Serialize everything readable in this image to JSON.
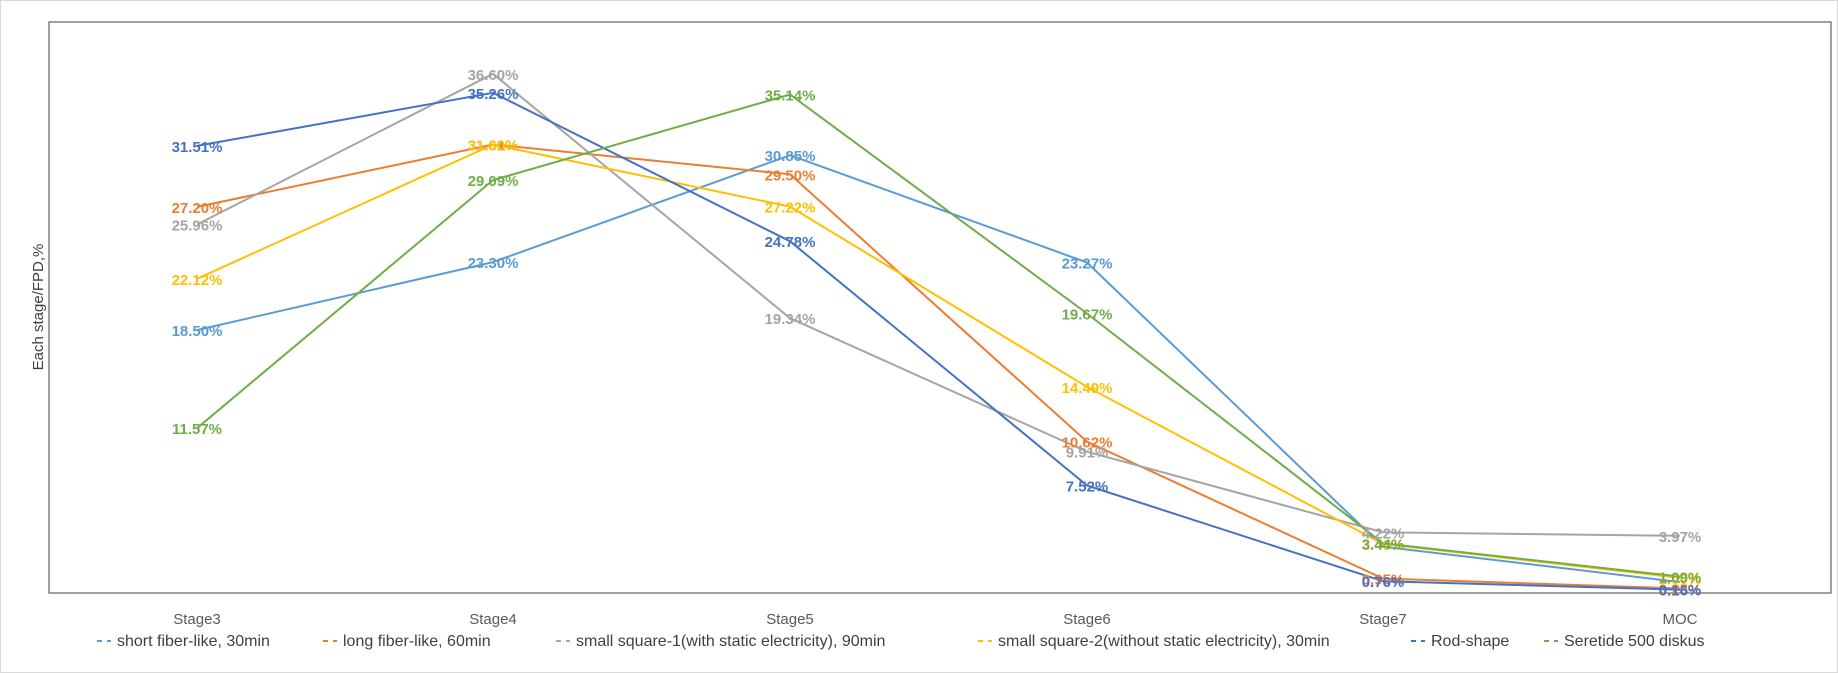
{
  "chart_data": {
    "type": "line",
    "title": "",
    "xlabel": "",
    "ylabel": "Each stage/FPD,%",
    "categories": [
      "Stage3",
      "Stage4",
      "Stage5",
      "Stage6",
      "Stage7",
      "MOC"
    ],
    "ylim": [
      0,
      38
    ],
    "grid": false,
    "legend_position": "bottom",
    "series": [
      {
        "name": "short fiber-like, 30min",
        "color": "#5B9BD5",
        "values": [
          18.5,
          23.3,
          30.85,
          23.27,
          3.2,
          0.7
        ],
        "labels": [
          "18.50%",
          "23.30%",
          "30.85%",
          "23.27%",
          "",
          ""
        ]
      },
      {
        "name": "long fiber-like, 60min",
        "color": "#ED7D31",
        "values": [
          27.2,
          31.61,
          29.5,
          10.62,
          0.95,
          0.25
        ],
        "labels": [
          "27.20%",
          "31.61%",
          "29.50%",
          "10.62%",
          "0.95%",
          "0.25%"
        ]
      },
      {
        "name": "small square-1(with static electricity), 90min",
        "color": "#A5A5A5",
        "values": [
          25.96,
          36.6,
          19.34,
          9.91,
          4.22,
          3.97
        ],
        "labels": [
          "25.96%",
          "36.60%",
          "19.34%",
          "9.91%",
          "4.22%",
          "3.97%"
        ]
      },
      {
        "name": "small square-2(without static electricity), 30min",
        "color": "#FFC000",
        "values": [
          22.12,
          31.6,
          27.22,
          14.49,
          3.4,
          1.0
        ],
        "labels": [
          "22.12%",
          "31.60%",
          "27.22%",
          "14.49%",
          "3.40%",
          "1.00%"
        ]
      },
      {
        "name": "Rod-shape",
        "color": "#4472C4",
        "values": [
          31.51,
          35.26,
          24.78,
          7.52,
          0.76,
          0.16
        ],
        "labels": [
          "31.51%",
          "35.26%",
          "24.78%",
          "7.52%",
          "0.76%",
          "0.16%"
        ]
      },
      {
        "name": "Seretide 500 diskus",
        "color": "#70AD47",
        "values": [
          11.57,
          29.09,
          35.14,
          19.67,
          3.44,
          1.09
        ],
        "labels": [
          "11.57%",
          "29.09%",
          "35.14%",
          "19.67%",
          "3.44%",
          "1.09%"
        ]
      }
    ]
  }
}
